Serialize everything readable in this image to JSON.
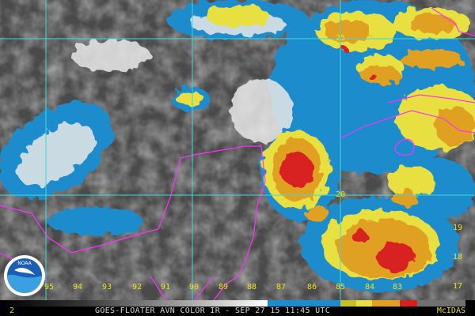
{
  "caption": "GOES-FLOATER AVN COLOR IR - SEP 27 15 11:45 UTC",
  "brand": "McIDAS",
  "frame_number": "2",
  "logo_text": "NOAA",
  "longitude_labels": [
    "96",
    "95",
    "94",
    "93",
    "92",
    "91",
    "90",
    "89",
    "88",
    "87",
    "86",
    "85",
    "84",
    "83"
  ],
  "latitude_labels": [
    "25",
    "20",
    "19",
    "18",
    "17"
  ],
  "colors": {
    "gridline": "#40d8d8",
    "coastline": "#ff30ff",
    "label": "#e8e020",
    "cloud_blue": "#1e8ccc",
    "cloud_yellow": "#e8e040",
    "cloud_orange": "#e0a020",
    "cloud_red": "#d82020"
  }
}
